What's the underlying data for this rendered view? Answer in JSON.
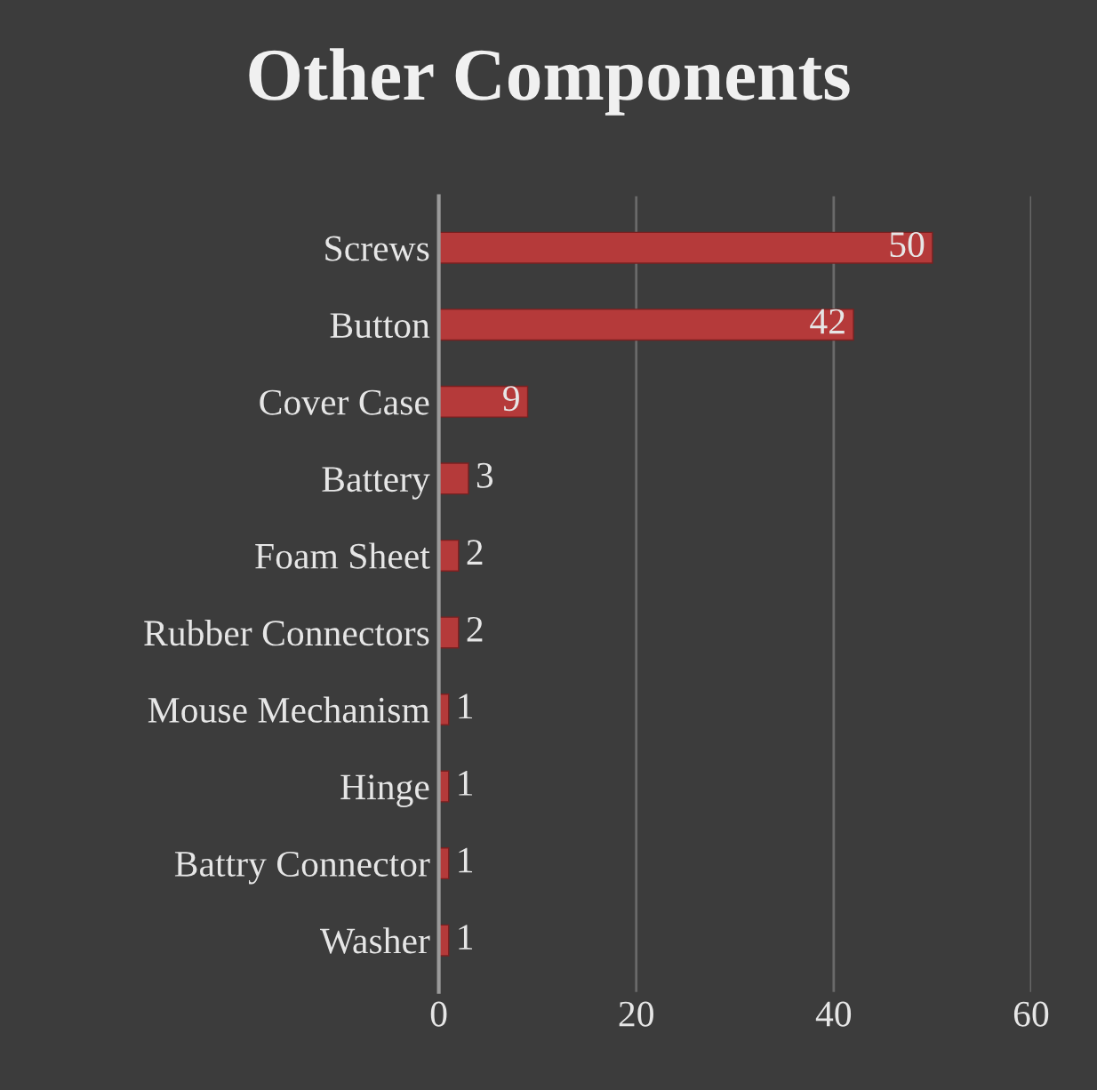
{
  "chart_data": {
    "type": "bar",
    "title": "Other Components",
    "orientation": "horizontal",
    "categories": [
      "Screws",
      "Button",
      "Cover Case",
      "Battery",
      "Foam Sheet",
      "Rubber Connectors",
      "Mouse Mechanism",
      "Hinge",
      "Battry Connector",
      "Washer"
    ],
    "values": [
      50,
      42,
      9,
      3,
      2,
      2,
      1,
      1,
      1,
      1
    ],
    "color": "#b53a3a",
    "xlim": [
      0,
      60
    ],
    "xticks": [
      0,
      20,
      40,
      60
    ],
    "grid": "x",
    "data_labels": true
  }
}
